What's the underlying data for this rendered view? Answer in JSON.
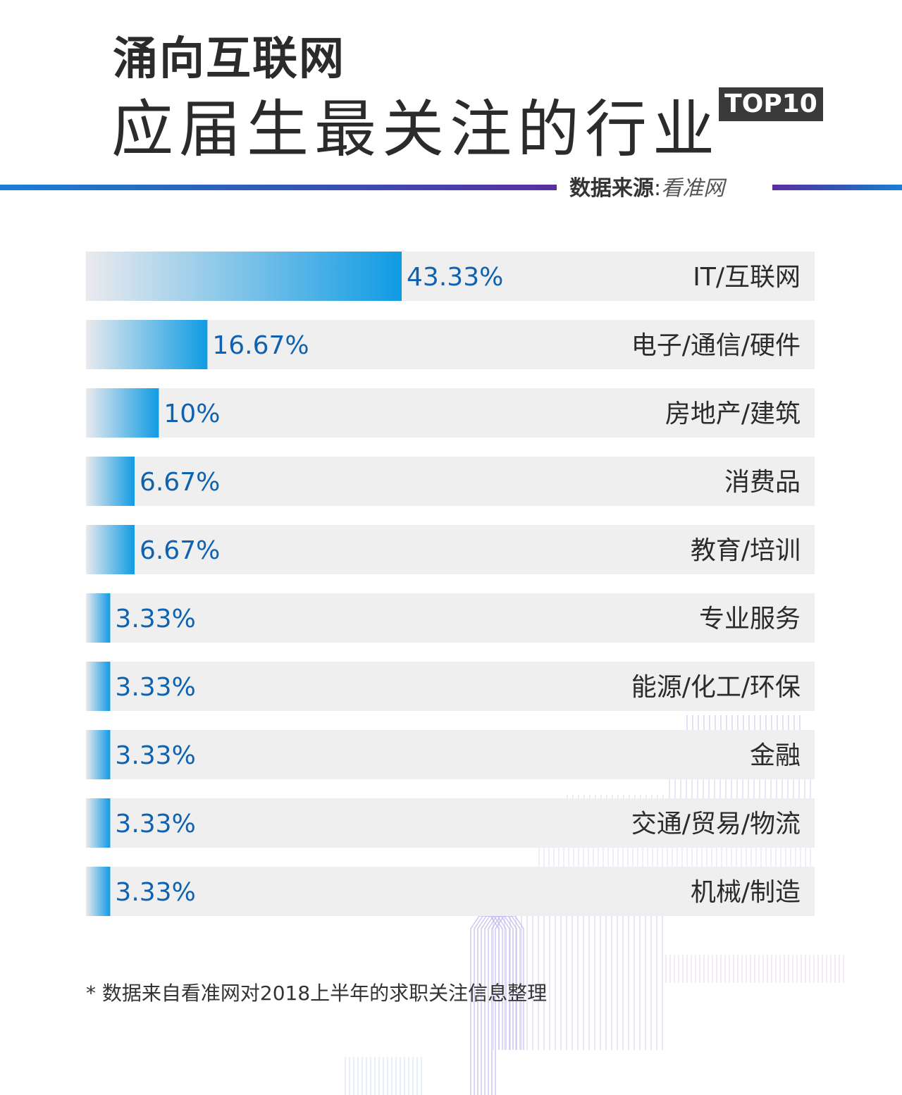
{
  "header": {
    "title": "涌向互联网",
    "subtitle": "应届生最关注的行业",
    "badge": "TOP10",
    "source_label": "数据来源",
    "source_sep": ":",
    "source_value": "看准网"
  },
  "footnote": "* 数据来自看准网对2018上半年的求职关注信息整理",
  "colors": {
    "bar_track": "#efefef",
    "bar_solid": "#0f9be3",
    "bar_fade": "#eaeaee",
    "value_text": "#0f62b0",
    "label_text": "#2b2b2b",
    "line_accent": "#5b2ea0"
  },
  "chart_data": {
    "type": "bar",
    "orientation": "horizontal",
    "categories": [
      "IT/互联网",
      "电子/通信/硬件",
      "房地产/建筑",
      "消费品",
      "教育/培训",
      "专业服务",
      "能源/化工/环保",
      "金融",
      "交通/贸易/物流",
      "机械/制造"
    ],
    "values": [
      43.33,
      16.67,
      10,
      6.67,
      6.67,
      3.33,
      3.33,
      3.33,
      3.33,
      3.33
    ],
    "value_labels": [
      "43.33%",
      "16.67%",
      "10%",
      "6.67%",
      "6.67%",
      "3.33%",
      "3.33%",
      "3.33%",
      "3.33%",
      "3.33%"
    ],
    "unit": "%",
    "xlim": [
      0,
      100
    ]
  }
}
